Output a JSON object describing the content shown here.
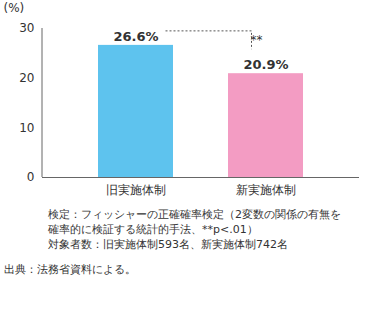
{
  "chart_data": {
    "type": "bar",
    "categories": [
      "旧実施体制",
      "新実施体制"
    ],
    "values": [
      26.6,
      20.9
    ],
    "value_labels": [
      "26.6%",
      "20.9%"
    ],
    "data_labels": true,
    "colors": [
      "#5ec3ee",
      "#f39cc3"
    ],
    "ylim": [
      0,
      30
    ],
    "yticks": [
      0,
      10,
      20,
      30
    ],
    "y_label": "(%)",
    "annotation": "**",
    "notes": [
      "検定：フィッシャーの正確確率検定（2変数の関係の有無を確率的に検証する統計的手法、**p<.01）",
      "対象者数：旧実施体制593名、新実施体制742名"
    ],
    "source": "出典：法務省資料による。"
  }
}
